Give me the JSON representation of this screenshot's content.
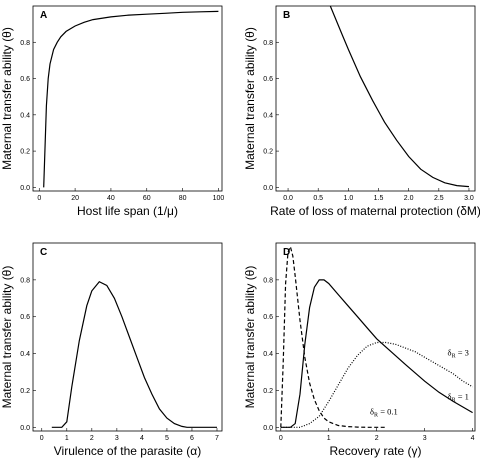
{
  "chart_data": [
    {
      "type": "line",
      "panel": "A",
      "xlabel": "Host life span (1/μ)",
      "ylabel": "Maternal transfer ability (θ)",
      "xlim": [
        0,
        100
      ],
      "ylim": [
        0,
        1
      ],
      "xticks": [
        "0",
        "20",
        "40",
        "60",
        "80",
        "100"
      ],
      "yticks": [
        "0.0",
        "0.2",
        "0.4",
        "0.6",
        "0.8"
      ],
      "series": [
        {
          "style": "solid",
          "x": [
            2.5,
            3,
            4,
            5,
            6,
            8,
            10,
            12,
            15,
            20,
            25,
            30,
            40,
            50,
            60,
            70,
            80,
            90,
            100
          ],
          "y": [
            0.0,
            0.15,
            0.45,
            0.6,
            0.68,
            0.76,
            0.8,
            0.83,
            0.86,
            0.89,
            0.91,
            0.925,
            0.94,
            0.95,
            0.955,
            0.96,
            0.965,
            0.968,
            0.97
          ]
        }
      ]
    },
    {
      "type": "line",
      "panel": "B",
      "xlabel": "Rate of loss of maternal protection (δM)",
      "ylabel": "Maternal transfer ability (θ)",
      "xlim": [
        0,
        3
      ],
      "ylim": [
        0,
        1
      ],
      "xticks": [
        "0.0",
        "0.5",
        "1.0",
        "1.5",
        "2.0",
        "2.5",
        "3.0"
      ],
      "yticks": [
        "0.0",
        "0.2",
        "0.4",
        "0.6",
        "0.8"
      ],
      "series": [
        {
          "style": "solid",
          "x": [
            0.7,
            0.8,
            0.9,
            1.0,
            1.2,
            1.4,
            1.6,
            1.8,
            2.0,
            2.2,
            2.4,
            2.6,
            2.8,
            3.0
          ],
          "y": [
            1.0,
            0.92,
            0.84,
            0.76,
            0.61,
            0.48,
            0.36,
            0.26,
            0.17,
            0.1,
            0.055,
            0.025,
            0.01,
            0.004
          ]
        }
      ]
    },
    {
      "type": "line",
      "panel": "C",
      "xlabel": "Virulence of the parasite (α)",
      "ylabel": "Maternal transfer ability (θ)",
      "xlim": [
        0,
        7
      ],
      "ylim": [
        0,
        1
      ],
      "xticks": [
        "0",
        "1",
        "2",
        "3",
        "4",
        "5",
        "6",
        "7"
      ],
      "yticks": [
        "0.0",
        "0.2",
        "0.4",
        "0.6",
        "0.8"
      ],
      "series": [
        {
          "style": "solid",
          "x": [
            0.4,
            0.8,
            1.0,
            1.2,
            1.5,
            1.8,
            2.0,
            2.3,
            2.6,
            2.9,
            3.2,
            3.5,
            3.8,
            4.1,
            4.4,
            4.7,
            5.0,
            5.3,
            5.6,
            5.8,
            6.2,
            7.0
          ],
          "y": [
            0.0,
            0.0,
            0.03,
            0.22,
            0.47,
            0.66,
            0.74,
            0.79,
            0.77,
            0.7,
            0.6,
            0.49,
            0.38,
            0.27,
            0.18,
            0.1,
            0.05,
            0.02,
            0.005,
            0.0,
            0.0,
            0.0
          ]
        }
      ]
    },
    {
      "type": "line",
      "panel": "D",
      "xlabel": "Recovery rate (γ)",
      "ylabel": "Maternal transfer ability (θ)",
      "xlim": [
        0,
        4
      ],
      "ylim": [
        0,
        1
      ],
      "xticks": [
        "0",
        "1",
        "2",
        "3",
        "4"
      ],
      "yticks": [
        "0.0",
        "0.2",
        "0.4",
        "0.6",
        "0.8"
      ],
      "annotations": [
        "δR = 3",
        "δR = 1",
        "δR = 0.1"
      ],
      "series": [
        {
          "label": "δR = 0.1",
          "style": "dashed",
          "x": [
            0.0,
            0.05,
            0.1,
            0.15,
            0.2,
            0.25,
            0.3,
            0.35,
            0.4,
            0.5,
            0.6,
            0.7,
            0.8,
            0.9,
            1.0,
            1.2,
            1.4,
            1.6,
            1.8,
            2.0,
            2.2
          ],
          "y": [
            0.0,
            0.35,
            0.78,
            0.95,
            0.98,
            0.93,
            0.82,
            0.7,
            0.58,
            0.38,
            0.24,
            0.15,
            0.09,
            0.05,
            0.03,
            0.01,
            0.004,
            0.001,
            0.0,
            0.0,
            0.0
          ]
        },
        {
          "label": "δR = 1",
          "style": "solid",
          "x": [
            0.0,
            0.2,
            0.3,
            0.4,
            0.5,
            0.6,
            0.7,
            0.8,
            0.9,
            1.0,
            1.2,
            1.4,
            1.6,
            1.8,
            2.0,
            2.3,
            2.6,
            3.0,
            3.3,
            3.6,
            4.0
          ],
          "y": [
            0.0,
            0.0,
            0.02,
            0.18,
            0.45,
            0.65,
            0.76,
            0.8,
            0.8,
            0.78,
            0.72,
            0.66,
            0.6,
            0.54,
            0.48,
            0.41,
            0.34,
            0.25,
            0.19,
            0.14,
            0.08
          ]
        },
        {
          "label": "δR = 3",
          "style": "dotted",
          "x": [
            0.0,
            0.4,
            0.6,
            0.8,
            1.0,
            1.2,
            1.4,
            1.6,
            1.8,
            2.0,
            2.2,
            2.4,
            2.6,
            2.8,
            3.0,
            3.2,
            3.4,
            3.6,
            3.8,
            4.0
          ],
          "y": [
            0.0,
            0.0,
            0.02,
            0.06,
            0.14,
            0.23,
            0.32,
            0.39,
            0.44,
            0.46,
            0.46,
            0.45,
            0.43,
            0.41,
            0.38,
            0.35,
            0.32,
            0.29,
            0.25,
            0.22
          ]
        }
      ]
    }
  ]
}
